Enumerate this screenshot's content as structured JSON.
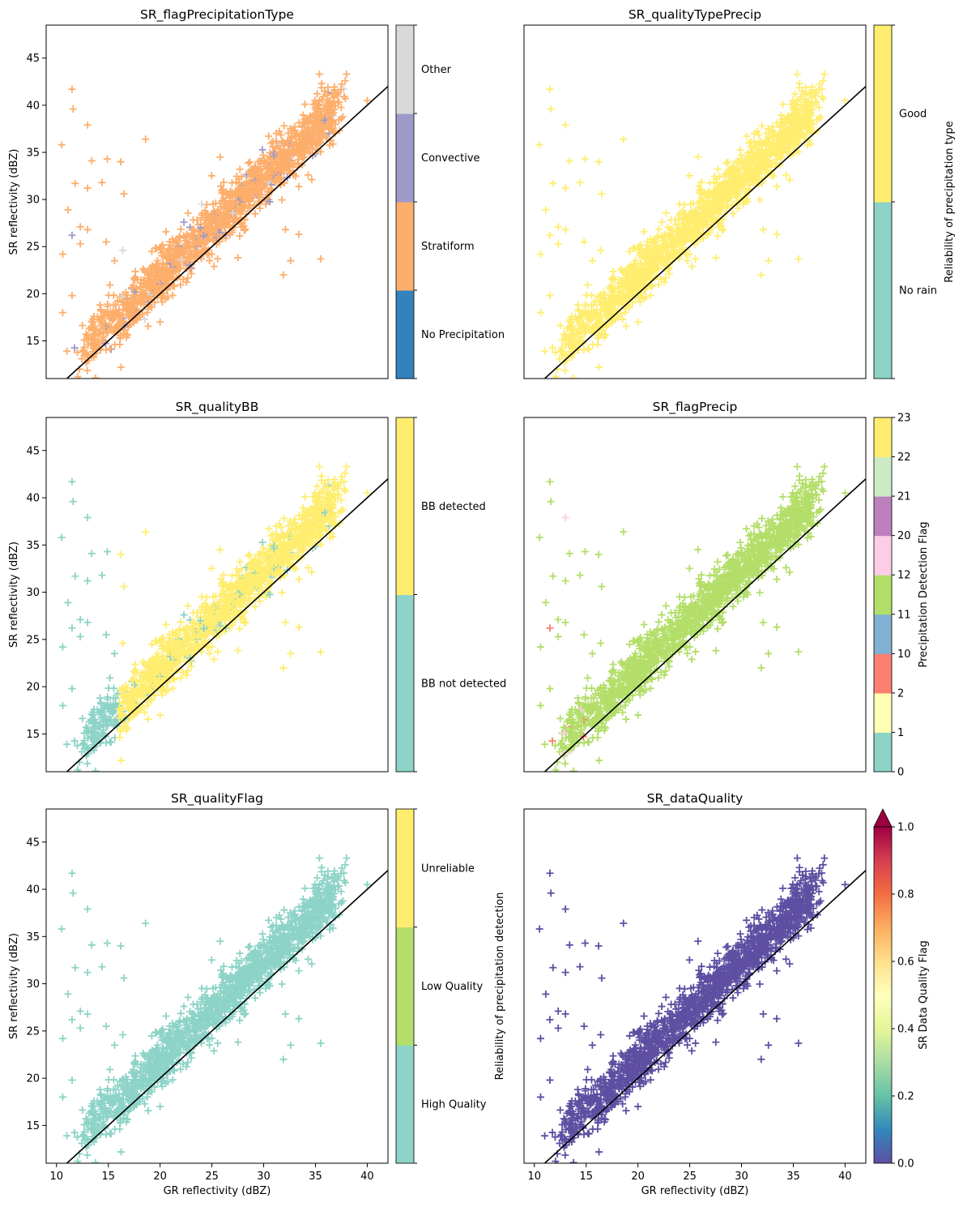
{
  "chart_data": [
    {
      "type": "scatter",
      "title": "SR_flagPrecipitationType",
      "xlabel": "",
      "ylabel": "SR reflectivity (dBZ)",
      "xlim": [
        9,
        42
      ],
      "ylim": [
        11,
        48.5
      ],
      "xticks": [],
      "yticks": [
        15,
        20,
        25,
        30,
        35,
        40,
        45
      ],
      "grid": false,
      "reference_line": "1:1",
      "series": [
        {
          "name": "No Precipitation",
          "color": "#3182bd",
          "fraction": 0.0
        },
        {
          "name": "Stratiform",
          "color": "#fdae6b",
          "fraction": 0.94
        },
        {
          "name": "Convective",
          "color": "#9e9ac8",
          "fraction": 0.05
        },
        {
          "name": "Other",
          "color": "#d9d9d9",
          "fraction": 0.01
        }
      ],
      "colorbar": {
        "kind": "categorical",
        "label": "",
        "categories": [
          {
            "label": "No Precipitation",
            "color": "#3182bd"
          },
          {
            "label": "Stratiform",
            "color": "#fdae6b"
          },
          {
            "label": "Convective",
            "color": "#9e9ac8"
          },
          {
            "label": "Other",
            "color": "#d9d9d9"
          }
        ]
      }
    },
    {
      "type": "scatter",
      "title": "SR_qualityTypePrecip",
      "xlabel": "",
      "ylabel": "",
      "xlim": [
        9,
        42
      ],
      "ylim": [
        11,
        48.5
      ],
      "xticks": [],
      "yticks": [],
      "grid": false,
      "reference_line": "1:1",
      "series": [
        {
          "name": "Good",
          "color": "#ffed6f",
          "fraction": 1.0
        }
      ],
      "colorbar": {
        "kind": "categorical",
        "label": "Reliability of precipitation type",
        "categories": [
          {
            "label": "No rain",
            "color": "#8dd3c7"
          },
          {
            "label": "Good",
            "color": "#ffed6f"
          }
        ]
      }
    },
    {
      "type": "scatter",
      "title": "SR_qualityBB",
      "xlabel": "",
      "ylabel": "SR reflectivity (dBZ)",
      "xlim": [
        9,
        42
      ],
      "ylim": [
        11,
        48.5
      ],
      "xticks": [],
      "yticks": [
        15,
        20,
        25,
        30,
        35,
        40,
        45
      ],
      "grid": false,
      "reference_line": "1:1",
      "series": [
        {
          "name": "BB not detected",
          "color": "#8dd3c7",
          "fraction": 0.16
        },
        {
          "name": "BB detected",
          "color": "#ffed6f",
          "fraction": 0.84
        }
      ],
      "colorbar": {
        "kind": "categorical",
        "label": "",
        "categories": [
          {
            "label": "BB not detected",
            "color": "#8dd3c7"
          },
          {
            "label": "BB detected",
            "color": "#ffed6f"
          }
        ]
      }
    },
    {
      "type": "scatter",
      "title": "SR_flagPrecip",
      "xlabel": "",
      "ylabel": "",
      "xlim": [
        9,
        42
      ],
      "ylim": [
        11,
        48.5
      ],
      "xticks": [],
      "yticks": [],
      "grid": false,
      "reference_line": "1:1",
      "series": [
        {
          "name": "11",
          "color": "#b3de69",
          "fraction": 0.98
        },
        {
          "name": "10",
          "color": "#fb8072",
          "fraction": 0.01
        },
        {
          "name": "21",
          "color": "#fccde5",
          "fraction": 0.01
        }
      ],
      "colorbar": {
        "kind": "discrete",
        "label": "Precipitation Detection Flag",
        "boundaries": [
          "0",
          "1",
          "2",
          "10",
          "11",
          "12",
          "20",
          "21",
          "22",
          "23"
        ],
        "colors": [
          "#8dd3c7",
          "#ffffb3",
          "#fb8072",
          "#80b1d3",
          "#b3de69",
          "#fccde5",
          "#bc80bd",
          "#ccebc5",
          "#ffed6f"
        ]
      }
    },
    {
      "type": "scatter",
      "title": "SR_qualityFlag",
      "xlabel": "GR reflectivity (dBZ)",
      "ylabel": "SR reflectivity (dBZ)",
      "xlim": [
        9,
        42
      ],
      "ylim": [
        11,
        48.5
      ],
      "xticks": [
        10,
        15,
        20,
        25,
        30,
        35,
        40
      ],
      "yticks": [
        15,
        20,
        25,
        30,
        35,
        40,
        45
      ],
      "grid": false,
      "reference_line": "1:1",
      "series": [
        {
          "name": "High Quality",
          "color": "#8dd3c7",
          "fraction": 1.0
        }
      ],
      "colorbar": {
        "kind": "categorical",
        "label": "Reliability of precipitation detection",
        "categories": [
          {
            "label": "High Quality",
            "color": "#8dd3c7"
          },
          {
            "label": "Low Quality",
            "color": "#b3de69"
          },
          {
            "label": "Unreliable",
            "color": "#ffed6f"
          }
        ]
      }
    },
    {
      "type": "scatter",
      "title": "SR_dataQuality",
      "xlabel": "GR reflectivity (dBZ)",
      "ylabel": "",
      "xlim": [
        9,
        42
      ],
      "ylim": [
        11,
        48.5
      ],
      "xticks": [
        10,
        15,
        20,
        25,
        30,
        35,
        40
      ],
      "yticks": [],
      "grid": false,
      "reference_line": "1:1",
      "series": [
        {
          "name": "0.0",
          "color": "#5e4fa2",
          "fraction": 1.0
        }
      ],
      "colorbar": {
        "kind": "continuous",
        "label": "SR Data Quality Flag",
        "range": [
          0.0,
          1.0
        ],
        "ticks": [
          "0.0",
          "0.2",
          "0.4",
          "0.6",
          "0.8",
          "1.0"
        ],
        "colormap": "Spectral_r",
        "colormap_stops": [
          "#5e4fa2",
          "#3288bd",
          "#66c2a5",
          "#abdda4",
          "#e6f598",
          "#ffffbf",
          "#fee08b",
          "#fdae61",
          "#f46d43",
          "#d53e4f",
          "#9e0142"
        ],
        "extend": "max"
      }
    }
  ]
}
